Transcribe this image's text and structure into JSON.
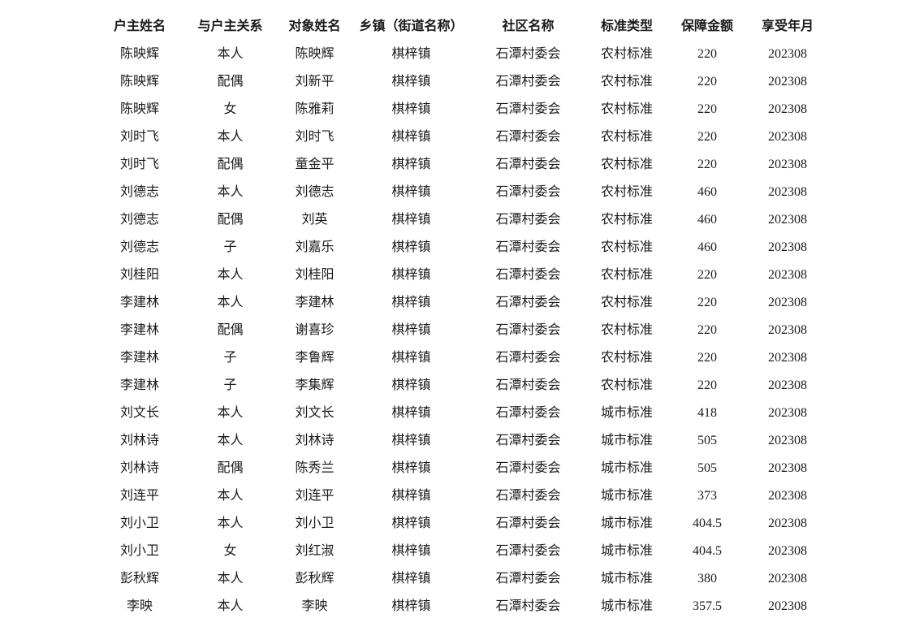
{
  "colors": {
    "background": "#ffffff",
    "text": "#1a1a1a"
  },
  "table": {
    "columns": [
      "户主姓名",
      "与户主关系",
      "对象姓名",
      "乡镇（街道名称）",
      "社区名称",
      "标准类型",
      "保障金额",
      "享受年月"
    ],
    "rows": [
      [
        "陈映辉",
        "本人",
        "陈映辉",
        "棋梓镇",
        "石潭村委会",
        "农村标准",
        "220",
        "202308"
      ],
      [
        "陈映辉",
        "配偶",
        "刘新平",
        "棋梓镇",
        "石潭村委会",
        "农村标准",
        "220",
        "202308"
      ],
      [
        "陈映辉",
        "女",
        "陈雅莉",
        "棋梓镇",
        "石潭村委会",
        "农村标准",
        "220",
        "202308"
      ],
      [
        "刘时飞",
        "本人",
        "刘时飞",
        "棋梓镇",
        "石潭村委会",
        "农村标准",
        "220",
        "202308"
      ],
      [
        "刘时飞",
        "配偶",
        "童金平",
        "棋梓镇",
        "石潭村委会",
        "农村标准",
        "220",
        "202308"
      ],
      [
        "刘德志",
        "本人",
        "刘德志",
        "棋梓镇",
        "石潭村委会",
        "农村标准",
        "460",
        "202308"
      ],
      [
        "刘德志",
        "配偶",
        "刘英",
        "棋梓镇",
        "石潭村委会",
        "农村标准",
        "460",
        "202308"
      ],
      [
        "刘德志",
        "子",
        "刘嘉乐",
        "棋梓镇",
        "石潭村委会",
        "农村标准",
        "460",
        "202308"
      ],
      [
        "刘桂阳",
        "本人",
        "刘桂阳",
        "棋梓镇",
        "石潭村委会",
        "农村标准",
        "220",
        "202308"
      ],
      [
        "李建林",
        "本人",
        "李建林",
        "棋梓镇",
        "石潭村委会",
        "农村标准",
        "220",
        "202308"
      ],
      [
        "李建林",
        "配偶",
        "谢喜珍",
        "棋梓镇",
        "石潭村委会",
        "农村标准",
        "220",
        "202308"
      ],
      [
        "李建林",
        "子",
        "李鲁辉",
        "棋梓镇",
        "石潭村委会",
        "农村标准",
        "220",
        "202308"
      ],
      [
        "李建林",
        "子",
        "李集辉",
        "棋梓镇",
        "石潭村委会",
        "农村标准",
        "220",
        "202308"
      ],
      [
        "刘文长",
        "本人",
        "刘文长",
        "棋梓镇",
        "石潭村委会",
        "城市标准",
        "418",
        "202308"
      ],
      [
        "刘林诗",
        "本人",
        "刘林诗",
        "棋梓镇",
        "石潭村委会",
        "城市标准",
        "505",
        "202308"
      ],
      [
        "刘林诗",
        "配偶",
        "陈秀兰",
        "棋梓镇",
        "石潭村委会",
        "城市标准",
        "505",
        "202308"
      ],
      [
        "刘连平",
        "本人",
        "刘连平",
        "棋梓镇",
        "石潭村委会",
        "城市标准",
        "373",
        "202308"
      ],
      [
        "刘小卫",
        "本人",
        "刘小卫",
        "棋梓镇",
        "石潭村委会",
        "城市标准",
        "404.5",
        "202308"
      ],
      [
        "刘小卫",
        "女",
        "刘红淑",
        "棋梓镇",
        "石潭村委会",
        "城市标准",
        "404.5",
        "202308"
      ],
      [
        "彭秋辉",
        "本人",
        "彭秋辉",
        "棋梓镇",
        "石潭村委会",
        "城市标准",
        "380",
        "202308"
      ],
      [
        "李映",
        "本人",
        "李映",
        "棋梓镇",
        "石潭村委会",
        "城市标准",
        "357.5",
        "202308"
      ]
    ]
  }
}
